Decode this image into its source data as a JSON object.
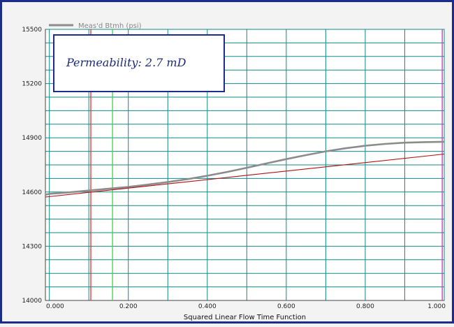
{
  "chart_data": {
    "type": "line",
    "xlabel": "Squared Linear Flow Time Function",
    "ylabel": "",
    "xlim": [
      -0.01,
      1.0
    ],
    "ylim": [
      14000,
      15500
    ],
    "x_ticks": [
      "0.000",
      "0.200",
      "0.400",
      "0.600",
      "0.800",
      "1.000"
    ],
    "y_ticks": [
      "14000",
      "14300",
      "14600",
      "14900",
      "15200",
      "15500"
    ],
    "grid": true,
    "legend_position": "top-left",
    "series": [
      {
        "name": "Meas'd Btmh (psi)",
        "color": "#8c8c8c",
        "x": [
          -0.01,
          0.0,
          0.05,
          0.1,
          0.15,
          0.2,
          0.25,
          0.3,
          0.35,
          0.4,
          0.45,
          0.5,
          0.55,
          0.6,
          0.65,
          0.7,
          0.75,
          0.8,
          0.85,
          0.9,
          0.95,
          1.0
        ],
        "y": [
          14585,
          14590,
          14598,
          14608,
          14618,
          14628,
          14641,
          14655,
          14671,
          14690,
          14711,
          14734,
          14758,
          14782,
          14804,
          14825,
          14842,
          14856,
          14866,
          14873,
          14876,
          14878
        ]
      },
      {
        "name": "",
        "color": "#b01010",
        "x": [
          -0.01,
          1.0
        ],
        "y": [
          14572,
          14810
        ]
      }
    ],
    "vertical_markers": [
      {
        "x": 0.105,
        "color": "#e03030"
      },
      {
        "x": 0.16,
        "color": "#33dd33"
      },
      {
        "x": 0.995,
        "color": "#dd22dd"
      }
    ],
    "annotation": "Permeability:  2.7 mD"
  },
  "colors": {
    "frame": "#1c2c8c",
    "plot_background": "#ffffff",
    "grid": "#118a8a",
    "annotation_border": "#1c2c8c"
  }
}
